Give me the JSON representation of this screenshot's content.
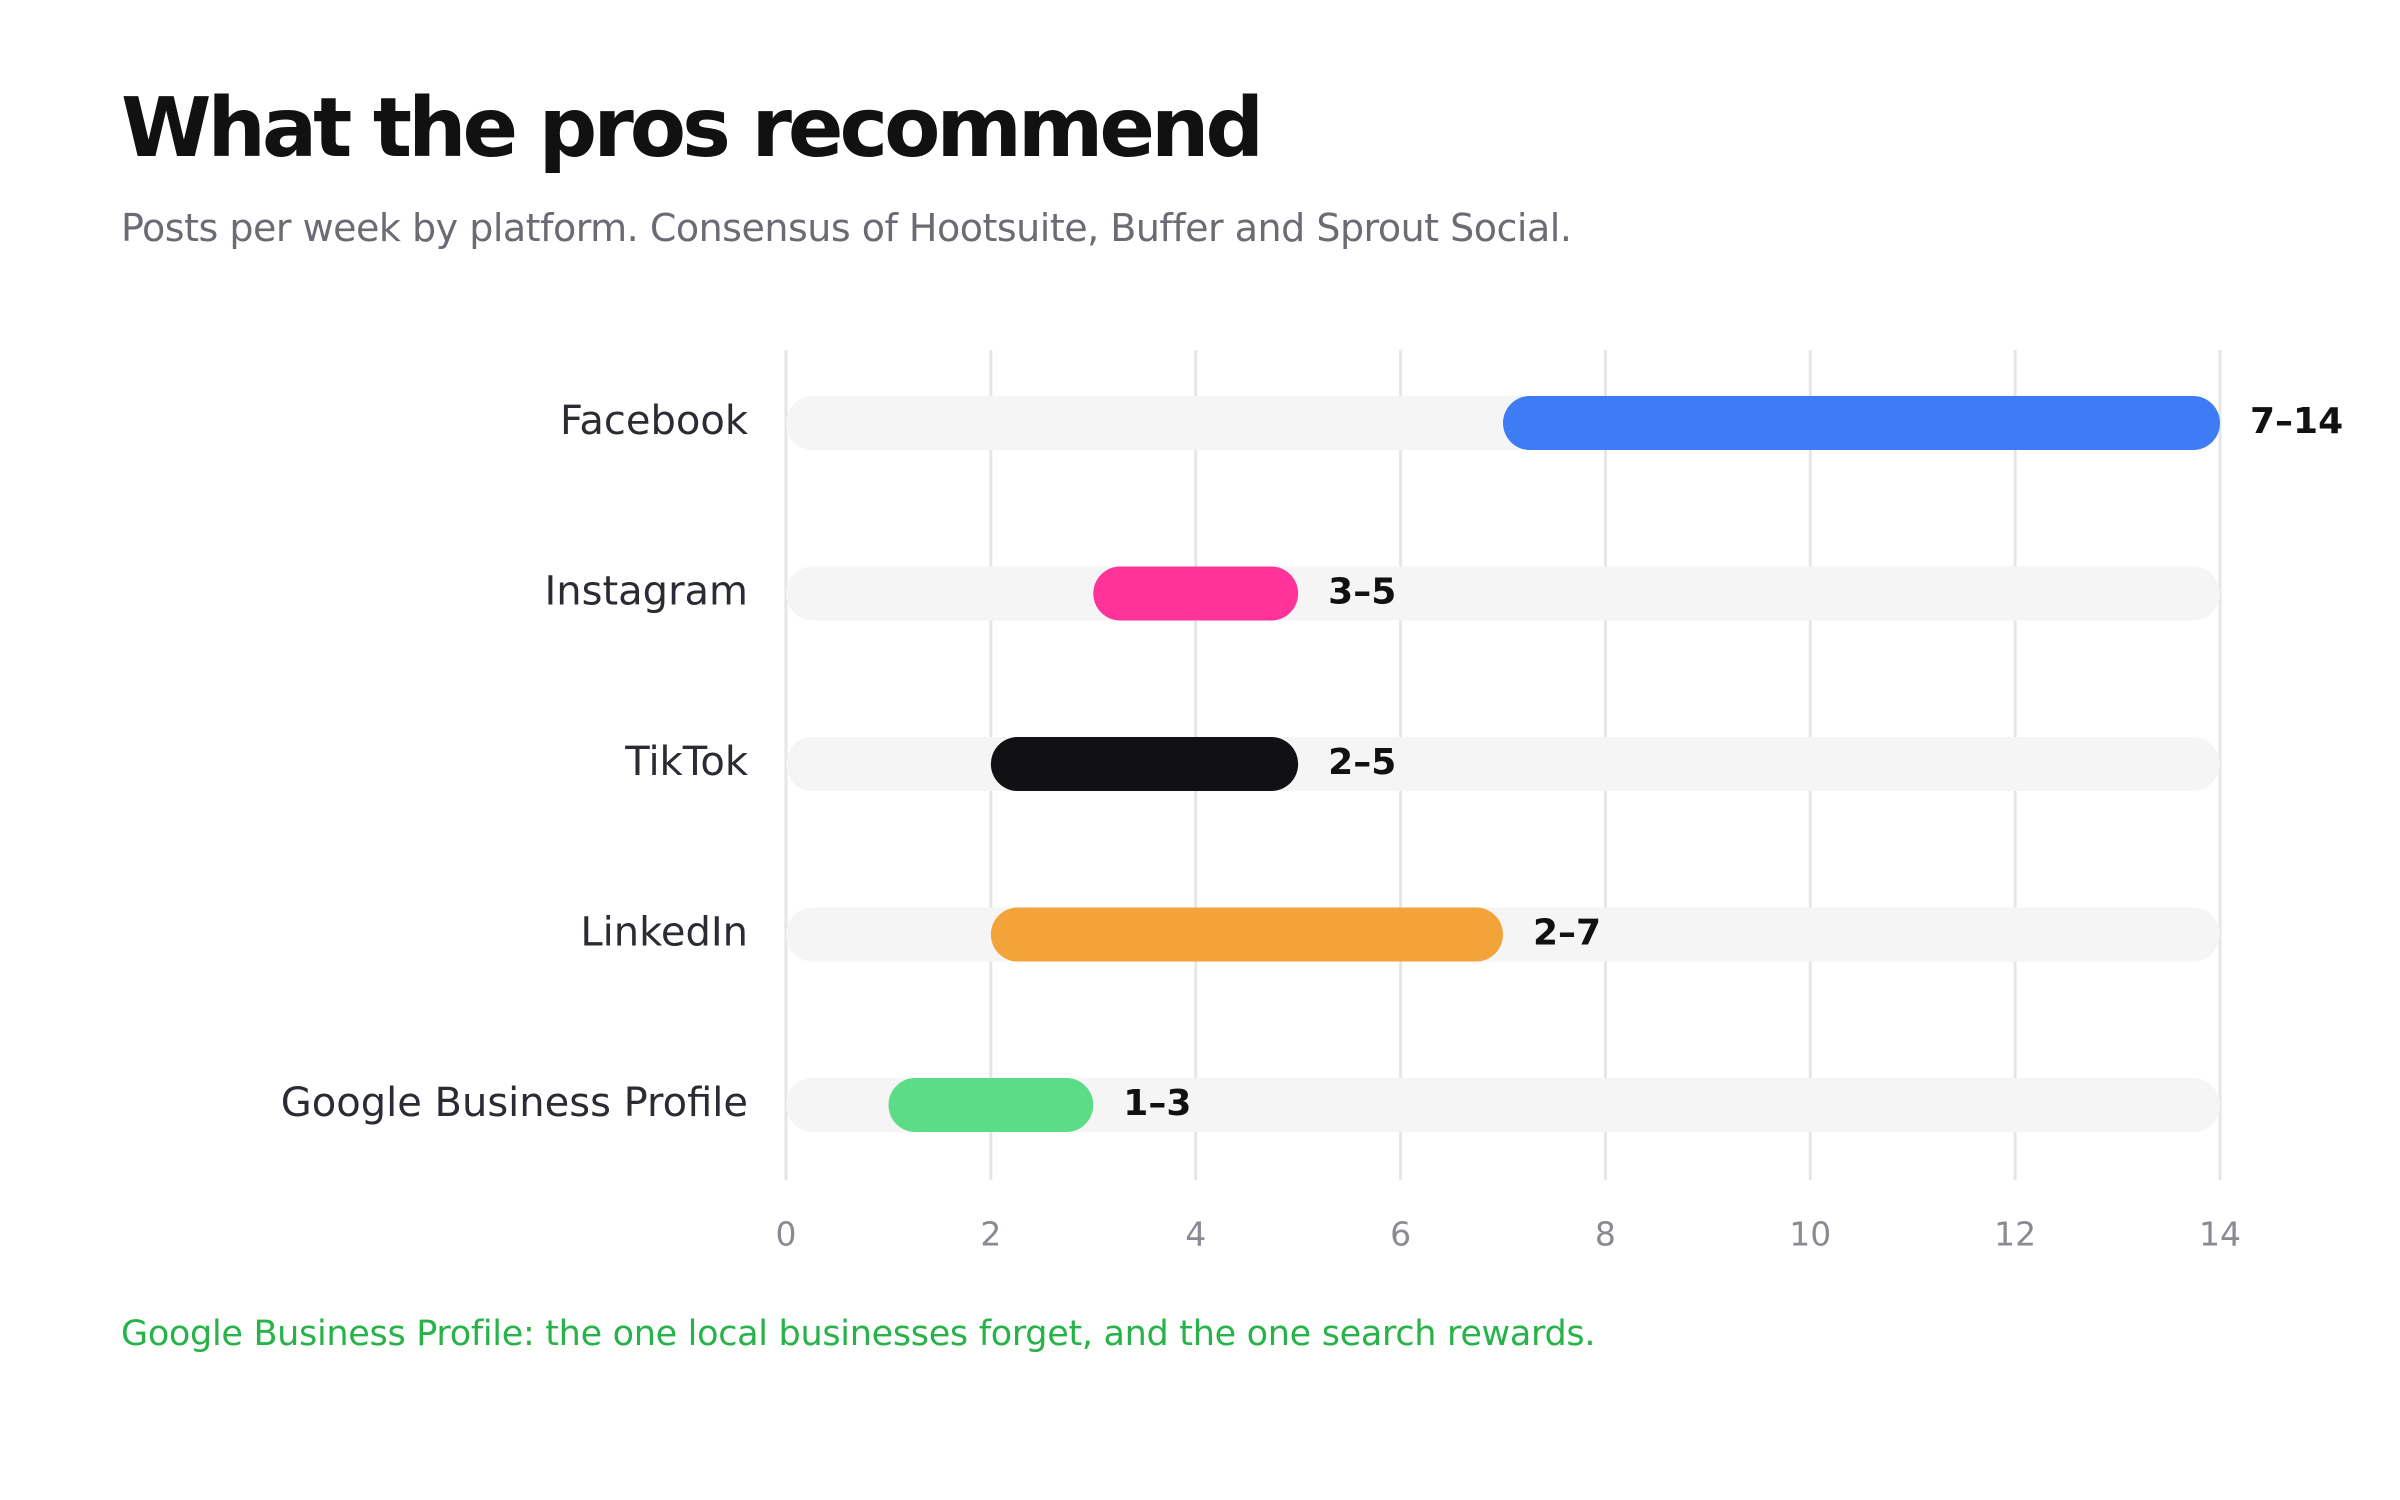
{
  "title": "What the pros recommend",
  "subtitle": "Posts per week by platform. Consensus of Hootsuite, Buffer and Sprout Social.",
  "footnote": "Google Business Profile: the one local businesses forget, and the one search rewards.",
  "colors": {
    "track": "#f5f5f5",
    "grid": "#e6e6e6",
    "tick_label": "#8a8a92",
    "category_label": "#2b2b33",
    "value_label": "#111111",
    "footnote": "#27b24a"
  },
  "chart_data": {
    "type": "bar",
    "orientation": "horizontal",
    "range_bars": true,
    "categories": [
      "Facebook",
      "Instagram",
      "TikTok",
      "LinkedIn",
      "Google Business Profile"
    ],
    "ranges": [
      {
        "min": 7,
        "max": 14,
        "label": "7–14",
        "color": "#3d7cf5"
      },
      {
        "min": 3,
        "max": 5,
        "label": "3–5",
        "color": "#ff3399"
      },
      {
        "min": 2,
        "max": 5,
        "label": "2–5",
        "color": "#111114"
      },
      {
        "min": 2,
        "max": 7,
        "label": "2–7",
        "color": "#f2a33a"
      },
      {
        "min": 1,
        "max": 3,
        "label": "1–3",
        "color": "#5ddc87"
      }
    ],
    "xlim": [
      0,
      14
    ],
    "xticks": [
      0,
      2,
      4,
      6,
      8,
      10,
      12,
      14
    ],
    "grid": true,
    "legend": "none"
  }
}
